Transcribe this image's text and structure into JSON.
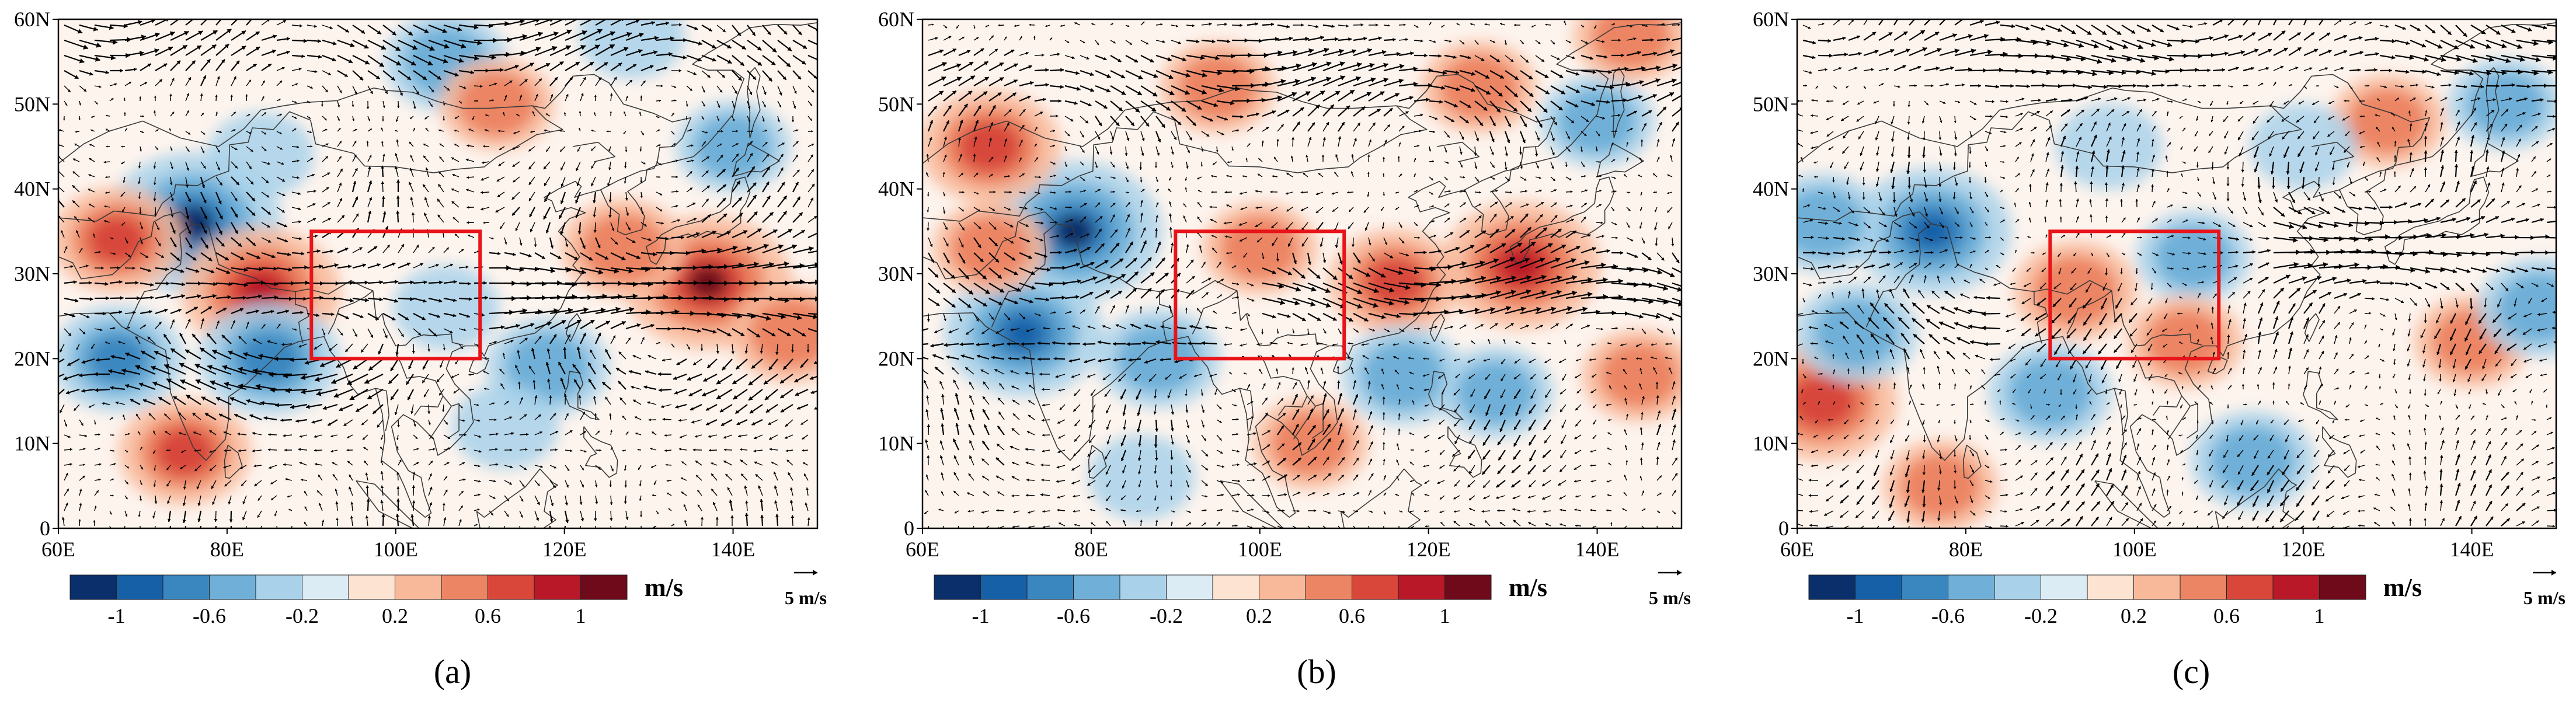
{
  "figure": {
    "x_ticks": [
      "60E",
      "80E",
      "100E",
      "120E",
      "140E"
    ],
    "y_ticks": [
      "0",
      "10N",
      "20N",
      "30N",
      "40N",
      "50N",
      "60N"
    ],
    "lon_range": [
      60,
      150
    ],
    "lat_range": [
      0,
      60
    ],
    "highlight_box": {
      "lon": [
        90,
        110
      ],
      "lat": [
        20,
        35
      ],
      "color": "#e8141a"
    },
    "colorbar": {
      "unit": "m/s",
      "tick_labels": [
        "-1",
        "-0.6",
        "-0.2",
        "0.2",
        "0.6",
        "1"
      ],
      "colors": [
        "#0a2f6b",
        "#1660a8",
        "#3a87c0",
        "#70b0d8",
        "#a9d1ea",
        "#dcecf5",
        "#fde3d2",
        "#f8b99a",
        "#ec8563",
        "#d8473a",
        "#b81828",
        "#6e0a1a"
      ]
    },
    "reference_vector": {
      "label": "5 m/s"
    },
    "colors": {
      "land_outline": "#3a3a3a",
      "arrow": "#000000"
    }
  },
  "panels": [
    {
      "label": "(a)",
      "anomaly_blobs": [
        {
          "lon": 76,
          "lat": 36,
          "value": -1.1
        },
        {
          "lon": 67,
          "lat": 34,
          "value": 0.6
        },
        {
          "lon": 84,
          "lat": 28,
          "value": 0.9
        },
        {
          "lon": 67,
          "lat": 20,
          "value": -0.6
        },
        {
          "lon": 85,
          "lat": 20,
          "value": -0.7
        },
        {
          "lon": 75,
          "lat": 9,
          "value": 0.6
        },
        {
          "lon": 84,
          "lat": 44,
          "value": -0.3
        },
        {
          "lon": 106,
          "lat": 26,
          "value": -0.3
        },
        {
          "lon": 118,
          "lat": 19,
          "value": -0.5
        },
        {
          "lon": 113,
          "lat": 12,
          "value": -0.3
        },
        {
          "lon": 137,
          "lat": 29,
          "value": 1.0
        },
        {
          "lon": 127,
          "lat": 33,
          "value": 0.5
        },
        {
          "lon": 147,
          "lat": 23,
          "value": 0.5
        },
        {
          "lon": 106,
          "lat": 55,
          "value": -0.5
        },
        {
          "lon": 112,
          "lat": 50,
          "value": 0.4
        },
        {
          "lon": 140,
          "lat": 45,
          "value": -0.4
        },
        {
          "lon": 128,
          "lat": 58,
          "value": -0.3
        }
      ]
    },
    {
      "label": "(b)",
      "anomaly_blobs": [
        {
          "lon": 78,
          "lat": 35,
          "value": -1.1
        },
        {
          "lon": 68,
          "lat": 45,
          "value": 0.7
        },
        {
          "lon": 72,
          "lat": 23,
          "value": -0.9
        },
        {
          "lon": 68,
          "lat": 33,
          "value": 0.4
        },
        {
          "lon": 88,
          "lat": 20,
          "value": -0.5
        },
        {
          "lon": 116,
          "lat": 29,
          "value": 0.6
        },
        {
          "lon": 131,
          "lat": 31,
          "value": 0.9
        },
        {
          "lon": 117,
          "lat": 18,
          "value": -0.5
        },
        {
          "lon": 128,
          "lat": 16,
          "value": -0.4
        },
        {
          "lon": 100,
          "lat": 33,
          "value": 0.4
        },
        {
          "lon": 106,
          "lat": 10,
          "value": 0.4
        },
        {
          "lon": 95,
          "lat": 52,
          "value": 0.4
        },
        {
          "lon": 126,
          "lat": 52,
          "value": 0.4
        },
        {
          "lon": 140,
          "lat": 48,
          "value": -0.4
        },
        {
          "lon": 145,
          "lat": 18,
          "value": 0.4
        },
        {
          "lon": 86,
          "lat": 6,
          "value": -0.3
        },
        {
          "lon": 144,
          "lat": 58,
          "value": 0.4
        }
      ]
    },
    {
      "label": "(c)",
      "anomaly_blobs": [
        {
          "lon": 76,
          "lat": 35,
          "value": -0.9
        },
        {
          "lon": 63,
          "lat": 36,
          "value": -0.5
        },
        {
          "lon": 63,
          "lat": 15,
          "value": 0.8
        },
        {
          "lon": 67,
          "lat": 23,
          "value": -0.5
        },
        {
          "lon": 93,
          "lat": 28,
          "value": 0.5
        },
        {
          "lon": 90,
          "lat": 16,
          "value": -0.5
        },
        {
          "lon": 107,
          "lat": 32,
          "value": -0.4
        },
        {
          "lon": 114,
          "lat": 8,
          "value": -0.5
        },
        {
          "lon": 106,
          "lat": 22,
          "value": 0.4
        },
        {
          "lon": 140,
          "lat": 22,
          "value": 0.4
        },
        {
          "lon": 130,
          "lat": 48,
          "value": 0.4
        },
        {
          "lon": 120,
          "lat": 45,
          "value": -0.3
        },
        {
          "lon": 144,
          "lat": 50,
          "value": -0.4
        },
        {
          "lon": 148,
          "lat": 26,
          "value": -0.5
        },
        {
          "lon": 77,
          "lat": 5,
          "value": 0.4
        },
        {
          "lon": 97,
          "lat": 45,
          "value": -0.3
        }
      ]
    }
  ]
}
